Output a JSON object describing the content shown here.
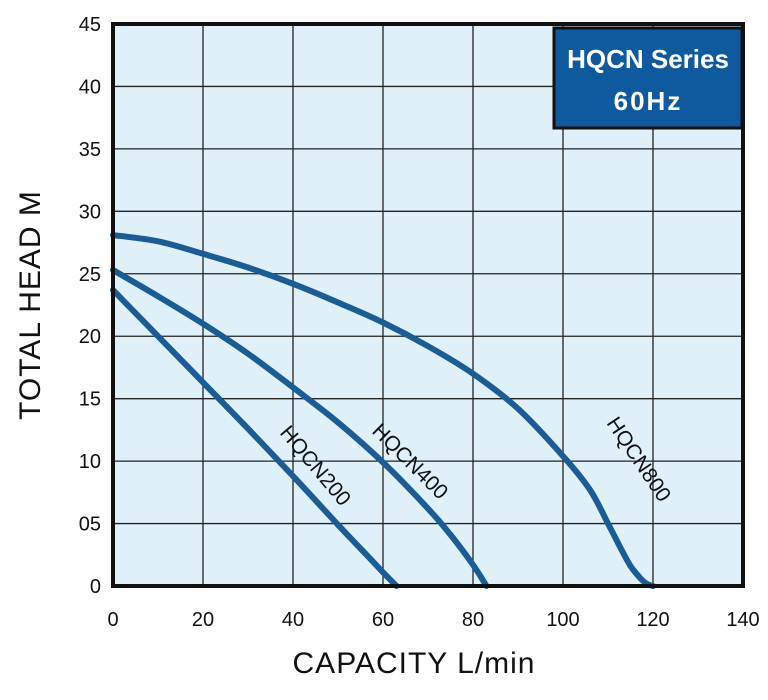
{
  "chart_data": {
    "type": "line",
    "xlabel": "CAPACITY L/min",
    "ylabel": "TOTAL HEAD M",
    "xlim": [
      0,
      140
    ],
    "ylim": [
      0,
      45
    ],
    "x_ticks": [
      "0",
      "20",
      "40",
      "60",
      "80",
      "100",
      "120",
      "140"
    ],
    "y_ticks": [
      "0",
      "05",
      "10",
      "15",
      "20",
      "25",
      "30",
      "35",
      "40",
      "45"
    ],
    "grid": true,
    "plot_background": "#dff0f8",
    "line_color": "#1a5c96",
    "badge": {
      "line1": "HQCN Series",
      "line2": "60Hz",
      "color": "#0f5a9e"
    },
    "series": [
      {
        "name": "HQCN200",
        "x": [
          0,
          10,
          20,
          30,
          40,
          50,
          55,
          60,
          63
        ],
        "y": [
          23.7,
          20.0,
          16.3,
          12.6,
          8.8,
          4.9,
          3.0,
          1.1,
          0
        ]
      },
      {
        "name": "HQCN400",
        "x": [
          0,
          10,
          20,
          30,
          40,
          50,
          60,
          70,
          75,
          80,
          83
        ],
        "y": [
          25.3,
          23.2,
          21.0,
          18.6,
          15.9,
          13.1,
          9.9,
          6.2,
          4.1,
          1.7,
          0
        ]
      },
      {
        "name": "HQCN800",
        "x": [
          0,
          10,
          20,
          30,
          40,
          50,
          60,
          70,
          80,
          90,
          100,
          106,
          110,
          113,
          115,
          117,
          118.5,
          120
        ],
        "y": [
          28.1,
          27.6,
          26.6,
          25.5,
          24.2,
          22.7,
          21.1,
          19.2,
          17.0,
          14.2,
          10.4,
          7.7,
          5.0,
          2.9,
          1.6,
          0.7,
          0.2,
          0
        ]
      }
    ]
  }
}
